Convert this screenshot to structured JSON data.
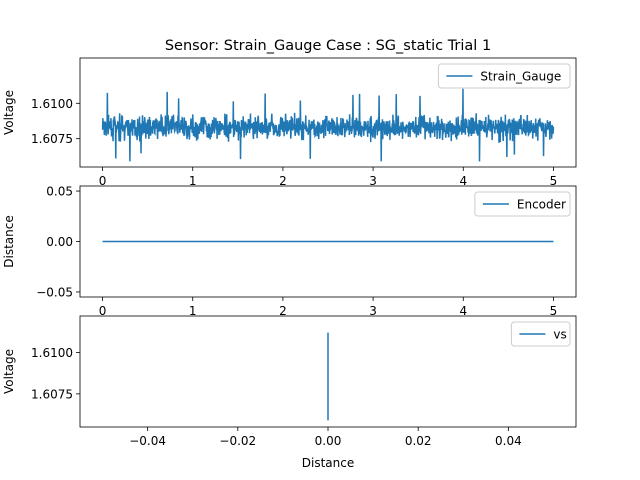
{
  "figure": {
    "title": "Sensor: Strain_Gauge Case : SG_static Trial 1"
  },
  "chart_data": [
    {
      "type": "line",
      "title": "Sensor: Strain_Gauge Case : SG_static Trial 1",
      "xlabel": "",
      "ylabel": "Voltage",
      "xlim": [
        -0.25,
        5.25
      ],
      "ylim": [
        1.6055,
        1.6132
      ],
      "xticks": [
        0,
        1,
        2,
        3,
        4,
        5
      ],
      "xtick_labels": [
        "0",
        "1",
        "2",
        "3",
        "4",
        "5"
      ],
      "yticks": [
        1.6075,
        1.61
      ],
      "ytick_labels": [
        "1.6075",
        "1.6100"
      ],
      "series": [
        {
          "name": "Strain_Gauge",
          "color": "#1f77b4",
          "description_values": "dense noise signal sampled over x from 0 to 5",
          "x_range": [
            0,
            5
          ],
          "y_mean": 1.6083,
          "y_min": 1.6059,
          "y_max": 1.6112
        }
      ],
      "legend": "top-right",
      "grid": false
    },
    {
      "type": "line",
      "xlabel": "",
      "ylabel": "Distance",
      "xlim": [
        -0.25,
        5.25
      ],
      "ylim": [
        -0.055,
        0.055
      ],
      "xticks": [
        0,
        1,
        2,
        3,
        4,
        5
      ],
      "xtick_labels": [
        "0",
        "1",
        "2",
        "3",
        "4",
        "5"
      ],
      "yticks": [
        -0.05,
        0.0,
        0.05
      ],
      "ytick_labels": [
        "−0.05",
        "0.00",
        "0.05"
      ],
      "series": [
        {
          "name": "Encoder",
          "color": "#1f77b4",
          "x": [
            0,
            5
          ],
          "y": [
            0,
            0
          ]
        }
      ],
      "legend": "top-right",
      "grid": false
    },
    {
      "type": "line",
      "xlabel": "Distance",
      "ylabel": "Voltage",
      "xlim": [
        -0.055,
        0.055
      ],
      "ylim": [
        1.6055,
        1.6122
      ],
      "xticks": [
        -0.04,
        -0.02,
        0.0,
        0.02,
        0.04
      ],
      "xtick_labels": [
        "−0.04",
        "−0.02",
        "0.00",
        "0.02",
        "0.04"
      ],
      "yticks": [
        1.6075,
        1.61
      ],
      "ytick_labels": [
        "1.6075",
        "1.6100"
      ],
      "series": [
        {
          "name": "vs",
          "color": "#1f77b4",
          "x": [
            0,
            0
          ],
          "y": [
            1.6059,
            1.6112
          ]
        }
      ],
      "legend": "top-right",
      "grid": false
    }
  ]
}
